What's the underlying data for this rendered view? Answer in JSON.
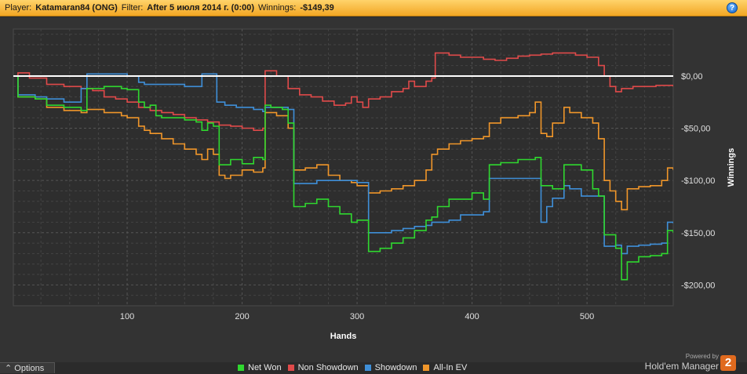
{
  "header": {
    "player_label": "Player:",
    "player_value": "Katamaran84 (ONG)",
    "filter_label": "Filter:",
    "filter_value": "After 5 июля 2014 г. (0:00)",
    "winnings_label": "Winnings:",
    "winnings_value": "-$149,39",
    "help_icon": "question-icon",
    "help_glyph": "?"
  },
  "footer": {
    "options_label": "Options",
    "options_icon": "chevron-up-icon",
    "options_glyph": "⌃",
    "powered_by": "Powered by",
    "brand": "Hold'em Manager",
    "logo_glyph": "2"
  },
  "chart_data": {
    "type": "line",
    "xlabel": "Hands",
    "ylabel": "Winnings",
    "xlim": [
      1,
      575
    ],
    "ylim": [
      -220,
      45
    ],
    "x_ticks": [
      100,
      200,
      300,
      400,
      500
    ],
    "y_ticks": [
      0,
      -50,
      -100,
      -150,
      -200
    ],
    "y_tick_labels": [
      "$0,00",
      "-$50,00",
      "-$100,00",
      "-$150,00",
      "-$200,00"
    ],
    "grid": true,
    "legend_position": "bottom",
    "series": [
      {
        "name": "Net Won",
        "color": "#2fd82f",
        "points": [
          [
            1,
            0
          ],
          [
            5,
            -20
          ],
          [
            20,
            -22
          ],
          [
            30,
            -28
          ],
          [
            45,
            -30
          ],
          [
            60,
            -33
          ],
          [
            65,
            -12
          ],
          [
            80,
            -10
          ],
          [
            95,
            -12
          ],
          [
            100,
            -13
          ],
          [
            110,
            -25
          ],
          [
            115,
            -30
          ],
          [
            120,
            -28
          ],
          [
            125,
            -38
          ],
          [
            130,
            -40
          ],
          [
            140,
            -40
          ],
          [
            150,
            -42
          ],
          [
            160,
            -44
          ],
          [
            165,
            -52
          ],
          [
            170,
            -45
          ],
          [
            175,
            -48
          ],
          [
            180,
            -85
          ],
          [
            190,
            -80
          ],
          [
            200,
            -84
          ],
          [
            210,
            -78
          ],
          [
            218,
            -80
          ],
          [
            220,
            -28
          ],
          [
            225,
            -30
          ],
          [
            235,
            -32
          ],
          [
            240,
            -45
          ],
          [
            245,
            -125
          ],
          [
            255,
            -122
          ],
          [
            265,
            -118
          ],
          [
            275,
            -125
          ],
          [
            285,
            -132
          ],
          [
            295,
            -140
          ],
          [
            300,
            -138
          ],
          [
            310,
            -168
          ],
          [
            320,
            -165
          ],
          [
            330,
            -160
          ],
          [
            340,
            -155
          ],
          [
            350,
            -148
          ],
          [
            360,
            -138
          ],
          [
            365,
            -135
          ],
          [
            370,
            -125
          ],
          [
            380,
            -118
          ],
          [
            390,
            -118
          ],
          [
            400,
            -112
          ],
          [
            410,
            -118
          ],
          [
            415,
            -85
          ],
          [
            425,
            -83
          ],
          [
            440,
            -80
          ],
          [
            450,
            -80
          ],
          [
            455,
            -78
          ],
          [
            460,
            -105
          ],
          [
            470,
            -108
          ],
          [
            480,
            -85
          ],
          [
            485,
            -85
          ],
          [
            495,
            -90
          ],
          [
            505,
            -108
          ],
          [
            510,
            -115
          ],
          [
            515,
            -152
          ],
          [
            525,
            -165
          ],
          [
            530,
            -195
          ],
          [
            535,
            -178
          ],
          [
            545,
            -173
          ],
          [
            555,
            -172
          ],
          [
            565,
            -170
          ],
          [
            570,
            -148
          ],
          [
            575,
            -150
          ]
        ]
      },
      {
        "name": "Non Showdown",
        "color": "#e04a4a",
        "points": [
          [
            1,
            0
          ],
          [
            5,
            3
          ],
          [
            15,
            -2
          ],
          [
            30,
            -8
          ],
          [
            45,
            -10
          ],
          [
            60,
            -12
          ],
          [
            70,
            -14
          ],
          [
            80,
            -20
          ],
          [
            90,
            -22
          ],
          [
            100,
            -25
          ],
          [
            110,
            -30
          ],
          [
            120,
            -33
          ],
          [
            130,
            -35
          ],
          [
            140,
            -37
          ],
          [
            150,
            -40
          ],
          [
            160,
            -42
          ],
          [
            170,
            -44
          ],
          [
            180,
            -47
          ],
          [
            190,
            -48
          ],
          [
            200,
            -50
          ],
          [
            210,
            -52
          ],
          [
            218,
            -50
          ],
          [
            220,
            5
          ],
          [
            230,
            0
          ],
          [
            240,
            -12
          ],
          [
            250,
            -18
          ],
          [
            260,
            -20
          ],
          [
            270,
            -24
          ],
          [
            280,
            -28
          ],
          [
            290,
            -26
          ],
          [
            295,
            -20
          ],
          [
            300,
            -25
          ],
          [
            305,
            -30
          ],
          [
            310,
            -22
          ],
          [
            320,
            -20
          ],
          [
            330,
            -15
          ],
          [
            340,
            -12
          ],
          [
            345,
            -5
          ],
          [
            350,
            -10
          ],
          [
            360,
            -5
          ],
          [
            365,
            -2
          ],
          [
            368,
            22
          ],
          [
            380,
            20
          ],
          [
            390,
            18
          ],
          [
            400,
            18
          ],
          [
            410,
            16
          ],
          [
            420,
            15
          ],
          [
            430,
            17
          ],
          [
            440,
            19
          ],
          [
            450,
            20
          ],
          [
            460,
            21
          ],
          [
            470,
            22
          ],
          [
            480,
            22
          ],
          [
            490,
            20
          ],
          [
            500,
            18
          ],
          [
            510,
            10
          ],
          [
            515,
            0
          ],
          [
            520,
            -10
          ],
          [
            525,
            -15
          ],
          [
            530,
            -12
          ],
          [
            540,
            -10
          ],
          [
            560,
            -9
          ],
          [
            575,
            -10
          ]
        ]
      },
      {
        "name": "Showdown",
        "color": "#3f8fd8",
        "points": [
          [
            1,
            0
          ],
          [
            5,
            -18
          ],
          [
            20,
            -20
          ],
          [
            30,
            -22
          ],
          [
            45,
            -25
          ],
          [
            55,
            -25
          ],
          [
            60,
            -12
          ],
          [
            65,
            2
          ],
          [
            80,
            2
          ],
          [
            95,
            2
          ],
          [
            100,
            0
          ],
          [
            110,
            -6
          ],
          [
            115,
            -8
          ],
          [
            140,
            -8
          ],
          [
            150,
            -10
          ],
          [
            160,
            -10
          ],
          [
            165,
            2
          ],
          [
            175,
            2
          ],
          [
            178,
            -25
          ],
          [
            185,
            -28
          ],
          [
            195,
            -30
          ],
          [
            210,
            -32
          ],
          [
            218,
            -34
          ],
          [
            220,
            -30
          ],
          [
            240,
            -32
          ],
          [
            245,
            -103
          ],
          [
            255,
            -103
          ],
          [
            265,
            -100
          ],
          [
            275,
            -100
          ],
          [
            285,
            -100
          ],
          [
            295,
            -100
          ],
          [
            300,
            -102
          ],
          [
            310,
            -150
          ],
          [
            320,
            -150
          ],
          [
            330,
            -148
          ],
          [
            340,
            -146
          ],
          [
            350,
            -144
          ],
          [
            360,
            -143
          ],
          [
            365,
            -140
          ],
          [
            370,
            -140
          ],
          [
            380,
            -138
          ],
          [
            390,
            -133
          ],
          [
            400,
            -133
          ],
          [
            410,
            -130
          ],
          [
            415,
            -98
          ],
          [
            425,
            -98
          ],
          [
            440,
            -98
          ],
          [
            450,
            -98
          ],
          [
            455,
            -98
          ],
          [
            460,
            -140
          ],
          [
            465,
            -125
          ],
          [
            470,
            -117
          ],
          [
            480,
            -105
          ],
          [
            485,
            -108
          ],
          [
            495,
            -115
          ],
          [
            505,
            -115
          ],
          [
            510,
            -115
          ],
          [
            515,
            -163
          ],
          [
            525,
            -162
          ],
          [
            530,
            -170
          ],
          [
            535,
            -163
          ],
          [
            545,
            -162
          ],
          [
            555,
            -161
          ],
          [
            565,
            -160
          ],
          [
            570,
            -140
          ],
          [
            575,
            -141
          ]
        ]
      },
      {
        "name": "All-In EV",
        "color": "#f0962a",
        "points": [
          [
            1,
            0
          ],
          [
            5,
            -20
          ],
          [
            20,
            -22
          ],
          [
            30,
            -30
          ],
          [
            45,
            -33
          ],
          [
            60,
            -35
          ],
          [
            65,
            -32
          ],
          [
            80,
            -35
          ],
          [
            95,
            -38
          ],
          [
            100,
            -40
          ],
          [
            110,
            -48
          ],
          [
            115,
            -52
          ],
          [
            120,
            -55
          ],
          [
            130,
            -60
          ],
          [
            140,
            -65
          ],
          [
            150,
            -70
          ],
          [
            160,
            -75
          ],
          [
            165,
            -80
          ],
          [
            170,
            -70
          ],
          [
            175,
            -75
          ],
          [
            180,
            -95
          ],
          [
            185,
            -98
          ],
          [
            190,
            -95
          ],
          [
            200,
            -90
          ],
          [
            210,
            -92
          ],
          [
            218,
            -88
          ],
          [
            220,
            -35
          ],
          [
            230,
            -38
          ],
          [
            240,
            -50
          ],
          [
            245,
            -90
          ],
          [
            255,
            -88
          ],
          [
            265,
            -85
          ],
          [
            275,
            -95
          ],
          [
            285,
            -100
          ],
          [
            295,
            -102
          ],
          [
            300,
            -105
          ],
          [
            310,
            -112
          ],
          [
            320,
            -110
          ],
          [
            330,
            -108
          ],
          [
            340,
            -105
          ],
          [
            350,
            -100
          ],
          [
            360,
            -90
          ],
          [
            365,
            -75
          ],
          [
            370,
            -70
          ],
          [
            380,
            -65
          ],
          [
            390,
            -62
          ],
          [
            400,
            -60
          ],
          [
            410,
            -58
          ],
          [
            415,
            -45
          ],
          [
            425,
            -40
          ],
          [
            440,
            -38
          ],
          [
            450,
            -35
          ],
          [
            455,
            -25
          ],
          [
            460,
            -55
          ],
          [
            465,
            -58
          ],
          [
            470,
            -45
          ],
          [
            480,
            -30
          ],
          [
            485,
            -35
          ],
          [
            495,
            -40
          ],
          [
            505,
            -45
          ],
          [
            510,
            -60
          ],
          [
            515,
            -100
          ],
          [
            520,
            -110
          ],
          [
            525,
            -120
          ],
          [
            530,
            -128
          ],
          [
            535,
            -108
          ],
          [
            545,
            -106
          ],
          [
            555,
            -105
          ],
          [
            565,
            -100
          ],
          [
            570,
            -88
          ],
          [
            575,
            -90
          ]
        ]
      }
    ]
  }
}
